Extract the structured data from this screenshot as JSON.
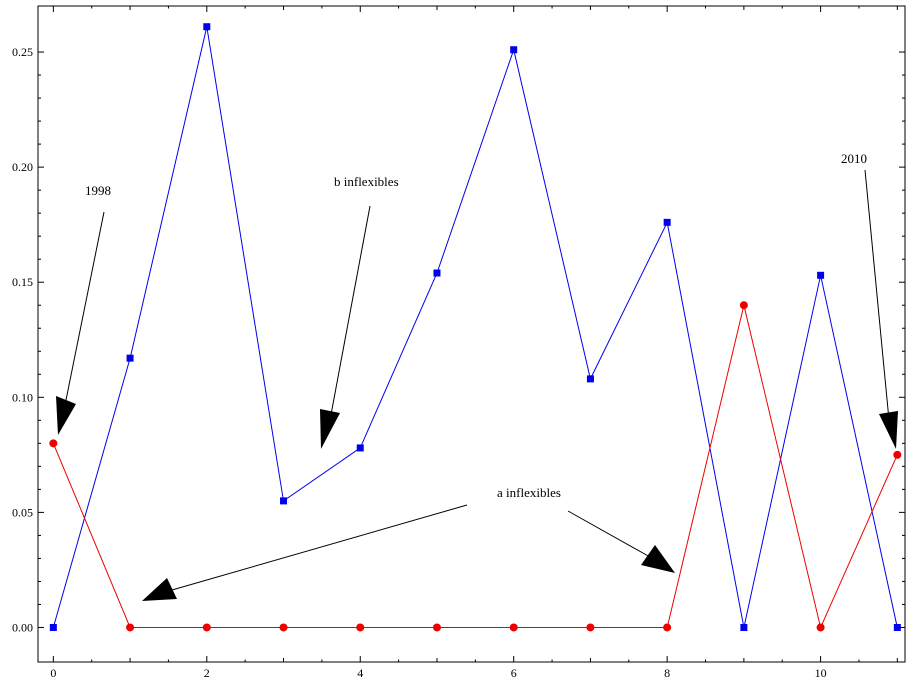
{
  "chart_data": {
    "type": "line",
    "title": "",
    "xlabel": "",
    "ylabel": "",
    "xlim": [
      -0.2,
      11.1
    ],
    "ylim": [
      -0.015,
      0.27
    ],
    "x_ticks": [
      0,
      2,
      4,
      6,
      8,
      10
    ],
    "y_ticks": [
      0.0,
      0.05,
      0.1,
      0.15,
      0.2,
      0.25
    ],
    "x_tick_labels": [
      "0",
      "2",
      "4",
      "6",
      "8",
      "10"
    ],
    "y_tick_labels": [
      "0.00",
      "0.05",
      "0.10",
      "0.15",
      "0.20",
      "0.25"
    ],
    "grid": false,
    "series": [
      {
        "color": "#0000ee",
        "marker": "square",
        "x": [
          0,
          1,
          2,
          3,
          4,
          5,
          6,
          7,
          8,
          9,
          10,
          11
        ],
        "values": [
          0.0,
          0.117,
          0.261,
          0.055,
          0.078,
          0.154,
          0.251,
          0.108,
          0.176,
          0.0,
          0.153,
          0.0
        ]
      },
      {
        "color": "#ee0000",
        "marker": "circle",
        "x": [
          0,
          1,
          2,
          3,
          4,
          5,
          6,
          7,
          8,
          9,
          10,
          11
        ],
        "values": [
          0.08,
          0.0,
          0.0,
          0.0,
          0.0,
          0.0,
          0.0,
          0.0,
          0.0,
          0.14,
          0.0,
          0.075
        ]
      }
    ],
    "annotations": [
      {
        "text": "1998"
      },
      {
        "text": "b inflexibles"
      },
      {
        "text": "a inflexibles"
      },
      {
        "text": "2010"
      }
    ]
  }
}
